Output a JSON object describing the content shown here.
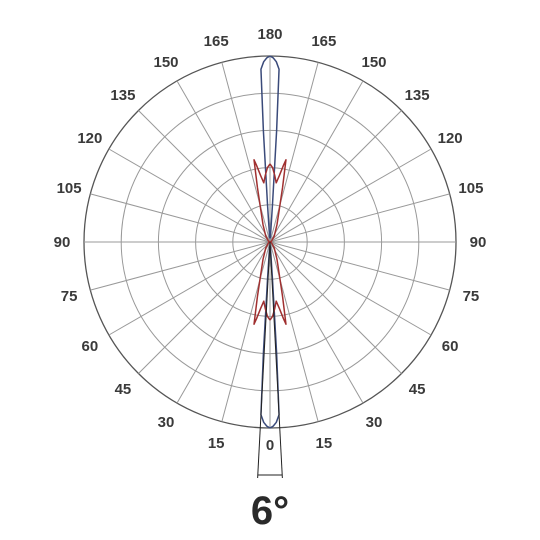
{
  "chart_data": {
    "type": "polar",
    "title": "",
    "angle_labels": {
      "bottom": "0",
      "top": "180",
      "left": [
        "15",
        "30",
        "45",
        "60",
        "75",
        "90",
        "105",
        "120",
        "135",
        "150",
        "165"
      ],
      "right": [
        "15",
        "30",
        "45",
        "60",
        "75",
        "90",
        "105",
        "120",
        "135",
        "150",
        "165"
      ]
    },
    "radial_rings": 5,
    "angular_step_deg": 15,
    "grid": true,
    "beam_angle_label": "6°",
    "beam_angle_deg": 6,
    "series": [
      {
        "color": "#3a4a7a",
        "points": [
          [
            0,
            1.0
          ],
          [
            1,
            0.99
          ],
          [
            2,
            0.97
          ],
          [
            3,
            0.93
          ],
          [
            3.4,
            0.6
          ],
          [
            3.8,
            0.2
          ],
          [
            5,
            0.02
          ]
        ]
      },
      {
        "color": "#a03030",
        "points": [
          [
            0,
            0.42
          ],
          [
            2,
            0.4
          ],
          [
            4,
            0.36
          ],
          [
            6,
            0.32
          ],
          [
            8,
            0.36
          ],
          [
            10,
            0.42
          ],
          [
            11,
            0.45
          ],
          [
            13,
            0.3
          ],
          [
            16,
            0.18
          ],
          [
            22,
            0.1
          ],
          [
            35,
            0.04
          ],
          [
            60,
            0.01
          ],
          [
            90,
            0
          ]
        ]
      }
    ]
  }
}
